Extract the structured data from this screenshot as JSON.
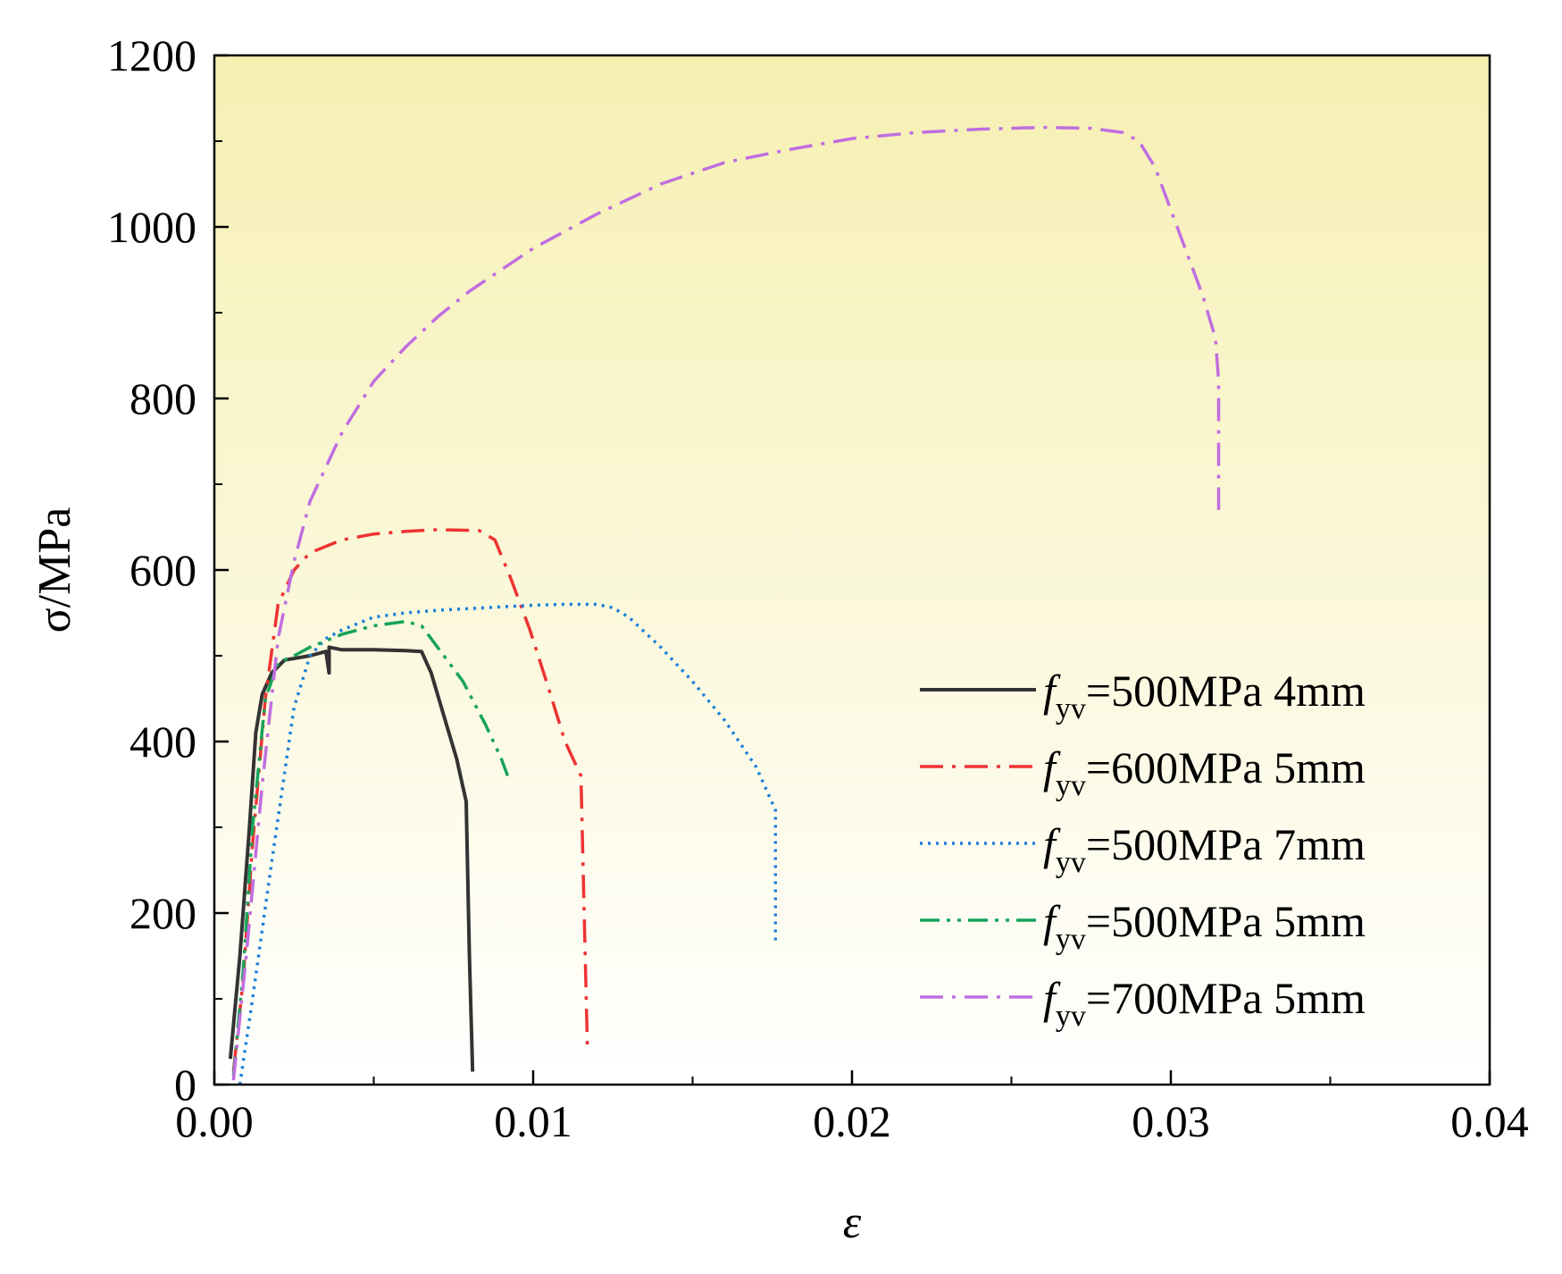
{
  "chart_data": {
    "type": "line",
    "title": "",
    "xlabel": "ε",
    "ylabel": "σ/MPa",
    "xlim": [
      0.0,
      0.04
    ],
    "ylim": [
      0,
      1200
    ],
    "x_ticks": [
      0.0,
      0.01,
      0.02,
      0.03,
      0.04
    ],
    "x_tick_labels": [
      "0.00",
      "0.01",
      "0.02",
      "0.03",
      "0.04"
    ],
    "y_ticks": [
      0,
      200,
      400,
      600,
      800,
      1000,
      1200
    ],
    "y_tick_labels": [
      "0",
      "200",
      "400",
      "600",
      "800",
      "1000",
      "1200"
    ],
    "grid": false,
    "legend_position": "lower-right",
    "background": {
      "top": "#f6f0b2",
      "bottom": "#ffffff"
    },
    "series": [
      {
        "name": "fyv=500MPa 4mm",
        "label_base": "f",
        "label_sub": "yv",
        "label_rest": "=500MPa 4mm",
        "color": "#333333",
        "dash": "solid",
        "x": [
          0.0005,
          0.0008,
          0.0011,
          0.0013,
          0.0015,
          0.0018,
          0.0022,
          0.003,
          0.0035,
          0.0036,
          0.0036,
          0.004,
          0.005,
          0.006,
          0.0065,
          0.0068,
          0.0072,
          0.0076,
          0.0079,
          0.008,
          0.0081
        ],
        "y": [
          30,
          150,
          300,
          410,
          455,
          480,
          495,
          500,
          505,
          480,
          510,
          507,
          507,
          506,
          505,
          480,
          430,
          380,
          330,
          150,
          15
        ]
      },
      {
        "name": "fyv=600MPa 5mm",
        "label_base": "f",
        "label_sub": "yv",
        "label_rest": "=600MPa 5mm",
        "color": "#ee3333",
        "dash": "dashdot",
        "x": [
          0.0006,
          0.0009,
          0.0012,
          0.0016,
          0.002,
          0.0025,
          0.003,
          0.004,
          0.005,
          0.006,
          0.007,
          0.0083,
          0.0088,
          0.0093,
          0.0099,
          0.0105,
          0.011,
          0.0115,
          0.0116,
          0.0117
        ],
        "y": [
          15,
          120,
          280,
          450,
          560,
          600,
          620,
          635,
          642,
          645,
          647,
          646,
          635,
          590,
          530,
          460,
          400,
          360,
          200,
          45
        ]
      },
      {
        "name": "fyv=500MPa 7mm",
        "label_base": "f",
        "label_sub": "yv",
        "label_rest": "=500MPa 7mm",
        "color": "#1b7fd9",
        "dash": "dotted",
        "x": [
          0.0008,
          0.0012,
          0.0018,
          0.0025,
          0.003,
          0.0035,
          0.004,
          0.005,
          0.006,
          0.007,
          0.008,
          0.009,
          0.01,
          0.011,
          0.012,
          0.0125,
          0.013,
          0.014,
          0.015,
          0.016,
          0.017,
          0.0176,
          0.0176,
          0.0176
        ],
        "y": [
          0,
          100,
          260,
          440,
          500,
          520,
          530,
          545,
          550,
          553,
          555,
          557,
          559,
          560,
          560,
          556,
          545,
          510,
          470,
          425,
          370,
          320,
          250,
          165
        ]
      },
      {
        "name": "fyv=500MPa 5mm",
        "label_base": "f",
        "label_sub": "yv",
        "label_rest": "=500MPa 5mm",
        "color": "#17a35a",
        "dash": "dashdotdot",
        "x": [
          0.0006,
          0.0009,
          0.0012,
          0.0016,
          0.002,
          0.0025,
          0.003,
          0.004,
          0.005,
          0.006,
          0.0065,
          0.007,
          0.0078,
          0.0085,
          0.009,
          0.0092
        ],
        "y": [
          10,
          130,
          300,
          450,
          492,
          500,
          510,
          525,
          535,
          540,
          535,
          510,
          470,
          420,
          380,
          360
        ]
      },
      {
        "name": "fyv=700MPa 5mm",
        "label_base": "f",
        "label_sub": "yv",
        "label_rest": "=700MPa 5mm",
        "color": "#c06ee0",
        "dash": "dashdot",
        "x": [
          0.0006,
          0.001,
          0.0015,
          0.002,
          0.0025,
          0.003,
          0.004,
          0.005,
          0.006,
          0.007,
          0.008,
          0.009,
          0.01,
          0.012,
          0.014,
          0.016,
          0.018,
          0.02,
          0.022,
          0.024,
          0.026,
          0.0275,
          0.0285,
          0.029,
          0.0295,
          0.03,
          0.0305,
          0.031,
          0.0314,
          0.0315,
          0.0315,
          0.0315
        ],
        "y": [
          5,
          150,
          350,
          520,
          610,
          680,
          760,
          820,
          860,
          895,
          925,
          950,
          975,
          1015,
          1050,
          1075,
          1090,
          1103,
          1110,
          1114,
          1116,
          1115,
          1110,
          1100,
          1070,
          1020,
          970,
          920,
          870,
          820,
          750,
          670
        ]
      }
    ]
  }
}
